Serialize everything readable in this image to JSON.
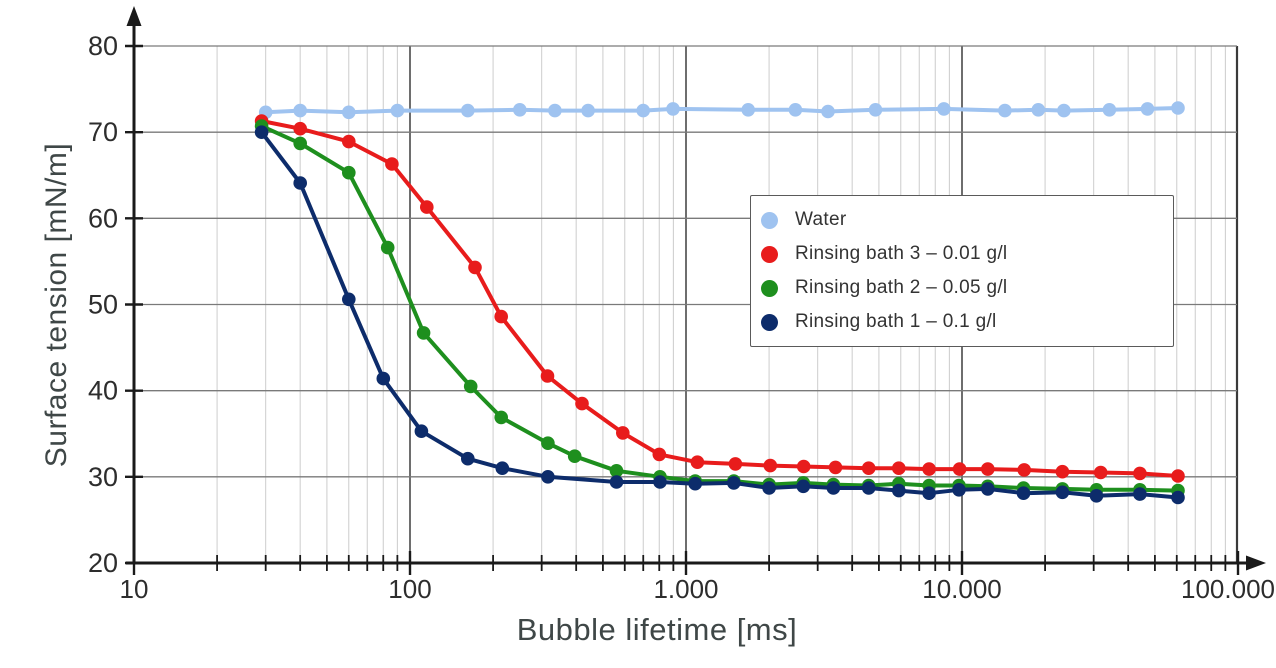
{
  "figure": {
    "background": "#ffffff"
  },
  "chart_data": {
    "type": "line",
    "title": "",
    "x_axis": {
      "label": "Bubble lifetime [ms]",
      "scale": "log",
      "min": 10,
      "max": 100000,
      "tick_values": [
        10,
        100,
        1000,
        10000,
        100000
      ],
      "tick_labels": [
        "10",
        "100",
        "1.000",
        "10.000",
        "100.000"
      ]
    },
    "y_axis": {
      "label": "Surface tension [mN/m]",
      "min": 20,
      "max": 80,
      "tick_values": [
        20,
        30,
        40,
        50,
        60,
        70,
        80
      ]
    },
    "grid": {
      "minor_vertical_color": "#cccccc",
      "major_vertical_color": "#4a4a4a",
      "horizontal_color": "#7a7a7a",
      "right_border_color": "#3a3a3a",
      "axis_color": "#1a1a1a",
      "tick_text_color": "#2d2d2d"
    },
    "legend": {
      "position": "upper-right"
    },
    "series": [
      {
        "name": "Water",
        "color": "#9FC3F0",
        "points": [
          [
            30,
            72.3
          ],
          [
            40,
            72.5
          ],
          [
            60,
            72.3
          ],
          [
            90,
            72.5
          ],
          [
            162,
            72.5
          ],
          [
            250,
            72.6
          ],
          [
            335,
            72.5
          ],
          [
            442,
            72.5
          ],
          [
            700,
            72.5
          ],
          [
            897,
            72.7
          ],
          [
            1680,
            72.6
          ],
          [
            2490,
            72.6
          ],
          [
            3270,
            72.4
          ],
          [
            4860,
            72.6
          ],
          [
            8600,
            72.7
          ],
          [
            14300,
            72.5
          ],
          [
            18900,
            72.6
          ],
          [
            23400,
            72.5
          ],
          [
            34200,
            72.6
          ],
          [
            47000,
            72.7
          ],
          [
            60600,
            72.8
          ]
        ]
      },
      {
        "name": "Rinsing bath 3 – 0.01 g/l",
        "color": "#E81C1C",
        "points": [
          [
            29,
            71.3
          ],
          [
            40,
            70.4
          ],
          [
            60,
            68.9
          ],
          [
            86,
            66.3
          ],
          [
            115,
            61.3
          ],
          [
            172,
            54.3
          ],
          [
            214,
            48.6
          ],
          [
            315,
            41.7
          ],
          [
            420,
            38.5
          ],
          [
            590,
            35.1
          ],
          [
            800,
            32.6
          ],
          [
            1100,
            31.7
          ],
          [
            1510,
            31.5
          ],
          [
            2020,
            31.3
          ],
          [
            2670,
            31.2
          ],
          [
            3480,
            31.1
          ],
          [
            4590,
            31.0
          ],
          [
            5900,
            31.0
          ],
          [
            7600,
            30.9
          ],
          [
            9800,
            30.9
          ],
          [
            12400,
            30.9
          ],
          [
            16800,
            30.8
          ],
          [
            23100,
            30.6
          ],
          [
            31800,
            30.5
          ],
          [
            44100,
            30.4
          ],
          [
            60600,
            30.1
          ]
        ]
      },
      {
        "name": "Rinsing bath 2 – 0.05 g/l",
        "color": "#1E8F1E",
        "points": [
          [
            29,
            70.7
          ],
          [
            40,
            68.7
          ],
          [
            60,
            65.3
          ],
          [
            83,
            56.6
          ],
          [
            112,
            46.7
          ],
          [
            166,
            40.5
          ],
          [
            214,
            36.9
          ],
          [
            316,
            33.9
          ],
          [
            395,
            32.4
          ],
          [
            560,
            30.7
          ],
          [
            805,
            30.0
          ],
          [
            1080,
            29.5
          ],
          [
            1490,
            29.5
          ],
          [
            2000,
            29.1
          ],
          [
            2660,
            29.3
          ],
          [
            3420,
            29.1
          ],
          [
            4590,
            29.0
          ],
          [
            5900,
            29.2
          ],
          [
            7600,
            29.0
          ],
          [
            9750,
            29.0
          ],
          [
            12400,
            28.9
          ],
          [
            16700,
            28.7
          ],
          [
            23100,
            28.6
          ],
          [
            30700,
            28.5
          ],
          [
            44100,
            28.5
          ],
          [
            60600,
            28.4
          ]
        ]
      },
      {
        "name": "Rinsing bath 1 – 0.1 g/l",
        "color": "#0D2C6B",
        "points": [
          [
            29,
            70.0
          ],
          [
            40,
            64.1
          ],
          [
            60,
            50.6
          ],
          [
            80,
            41.4
          ],
          [
            110,
            35.3
          ],
          [
            162,
            32.1
          ],
          [
            216,
            31.0
          ],
          [
            316,
            30.0
          ],
          [
            560,
            29.4
          ],
          [
            805,
            29.4
          ],
          [
            1080,
            29.2
          ],
          [
            1490,
            29.3
          ],
          [
            2000,
            28.7
          ],
          [
            2660,
            28.9
          ],
          [
            3420,
            28.7
          ],
          [
            4590,
            28.7
          ],
          [
            5900,
            28.4
          ],
          [
            7600,
            28.1
          ],
          [
            9750,
            28.5
          ],
          [
            12400,
            28.6
          ],
          [
            16700,
            28.1
          ],
          [
            23100,
            28.2
          ],
          [
            30700,
            27.8
          ],
          [
            44100,
            28.0
          ],
          [
            60600,
            27.6
          ]
        ]
      }
    ]
  }
}
